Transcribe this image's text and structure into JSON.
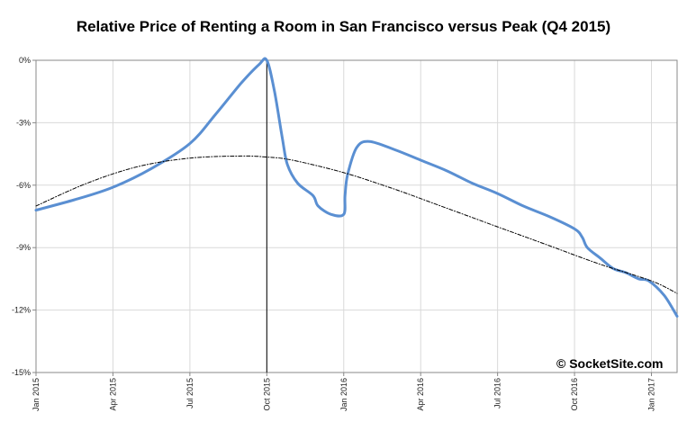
{
  "chart_data": {
    "type": "line",
    "title": "Relative Price of Renting a Room in San Francisco versus Peak (Q4 2015)",
    "watermark": "© SocketSite.com",
    "y_ticks": [
      {
        "value": 0,
        "label": "0%"
      },
      {
        "value": -3,
        "label": "-3%"
      },
      {
        "value": -6,
        "label": "-6%"
      },
      {
        "value": -9,
        "label": "-9%"
      },
      {
        "value": -12,
        "label": "-12%"
      },
      {
        "value": -15,
        "label": "-15%"
      }
    ],
    "x_ticks": [
      {
        "value": 0,
        "label": "Jan 2015"
      },
      {
        "value": 3,
        "label": "Apr 2015"
      },
      {
        "value": 6,
        "label": "Jul 2015"
      },
      {
        "value": 9,
        "label": "Oct 2015"
      },
      {
        "value": 12,
        "label": "Jan 2016"
      },
      {
        "value": 15,
        "label": "Apr 2016"
      },
      {
        "value": 18,
        "label": "Jul 2016"
      },
      {
        "value": 21,
        "label": "Oct 2016"
      },
      {
        "value": 24,
        "label": "Jan 2017"
      }
    ],
    "xlim": [
      0,
      25
    ],
    "ylim": [
      -15,
      0
    ],
    "grid": true,
    "peak_marker_x": 9,
    "series": [
      {
        "style": "solid",
        "color": "#5a8fd2",
        "x": [
          0,
          1.5,
          3,
          4.5,
          6,
          7,
          8,
          8.7,
          9,
          9.3,
          9.6,
          9.8,
          10.2,
          10.8,
          11,
          11.5,
          12,
          12.05,
          12.15,
          12.5,
          13,
          14,
          15,
          16,
          17,
          18,
          19,
          20,
          21,
          21.3,
          21.5,
          22,
          22.5,
          23,
          23.5,
          23.9,
          24.5,
          25
        ],
        "y": [
          -7.2,
          -6.7,
          -6.1,
          -5.2,
          -4.0,
          -2.6,
          -1.1,
          -0.2,
          0,
          -1.5,
          -3.7,
          -5.0,
          -5.9,
          -6.5,
          -7.0,
          -7.4,
          -7.4,
          -6.5,
          -5.5,
          -4.2,
          -3.9,
          -4.3,
          -4.8,
          -5.3,
          -5.9,
          -6.4,
          -7.0,
          -7.5,
          -8.1,
          -8.5,
          -9.0,
          -9.5,
          -10.0,
          -10.2,
          -10.5,
          -10.6,
          -11.3,
          -12.3
        ]
      },
      {
        "style": "dashdot",
        "color": "#000000",
        "x": [
          0,
          2,
          4,
          6,
          8,
          9,
          10,
          12,
          14,
          16,
          18,
          20,
          22,
          24,
          25
        ],
        "y": [
          -7.0,
          -5.9,
          -5.1,
          -4.7,
          -4.6,
          -4.65,
          -4.8,
          -5.4,
          -6.2,
          -7.1,
          -8.0,
          -8.9,
          -9.8,
          -10.6,
          -11.2
        ]
      }
    ]
  }
}
